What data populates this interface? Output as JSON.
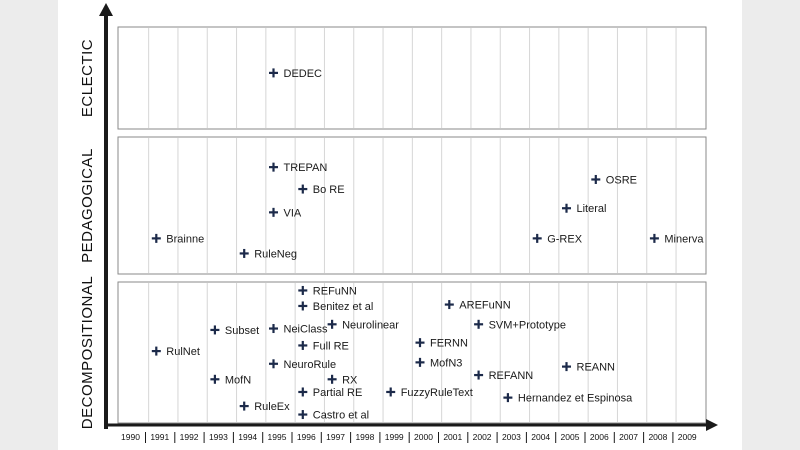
{
  "colors": {
    "marker": "#1c2a4a",
    "axis": "#1a1a1a",
    "gridline": "#d6d6d6",
    "panel_border": "#8a8a8a",
    "side_shade": "#ececec"
  },
  "chart_data": {
    "type": "scatter",
    "x_axis": {
      "ticks": [
        "1990",
        "1991",
        "1992",
        "1993",
        "1994",
        "1995",
        "1996",
        "1997",
        "1998",
        "1999",
        "2000",
        "2001",
        "2002",
        "2003",
        "2004",
        "2005",
        "2006",
        "2007",
        "2008",
        "2009"
      ],
      "range": [
        1990,
        2009
      ]
    },
    "categories": [
      "DECOMPOSITIONAL",
      "PEDAGOGICAL",
      "ECLECTIC"
    ],
    "grid": true,
    "series": [
      {
        "category": "ECLECTIC",
        "points": [
          {
            "label": "DEDEC",
            "x": 1995,
            "y": 0.55
          }
        ]
      },
      {
        "category": "PEDAGOGICAL",
        "points": [
          {
            "label": "TREPAN",
            "x": 1995,
            "y": 0.78
          },
          {
            "label": "Bo RE",
            "x": 1996,
            "y": 0.62
          },
          {
            "label": "VIA",
            "x": 1995,
            "y": 0.45
          },
          {
            "label": "Brainne",
            "x": 1991,
            "y": 0.26
          },
          {
            "label": "RuleNeg",
            "x": 1994,
            "y": 0.15
          },
          {
            "label": "OSRE",
            "x": 2006,
            "y": 0.69
          },
          {
            "label": "Literal",
            "x": 2005,
            "y": 0.48
          },
          {
            "label": "G-REX",
            "x": 2004,
            "y": 0.26
          },
          {
            "label": "Minerva",
            "x": 2008,
            "y": 0.26
          }
        ]
      },
      {
        "category": "DECOMPOSITIONAL",
        "points": [
          {
            "label": "REFuNN",
            "x": 1996,
            "y": 0.94
          },
          {
            "label": "Benitez et al",
            "x": 1996,
            "y": 0.83
          },
          {
            "label": "AREFuNN",
            "x": 2001,
            "y": 0.84
          },
          {
            "label": "Subset",
            "x": 1993,
            "y": 0.66
          },
          {
            "label": "NeiClass",
            "x": 1995,
            "y": 0.67
          },
          {
            "label": "Neurolinear",
            "x": 1997,
            "y": 0.7
          },
          {
            "label": "SVM+Prototype",
            "x": 2002,
            "y": 0.7
          },
          {
            "label": "FERNN",
            "x": 2000,
            "y": 0.57
          },
          {
            "label": "RulNet",
            "x": 1991,
            "y": 0.51
          },
          {
            "label": "Full RE",
            "x": 1996,
            "y": 0.55
          },
          {
            "label": "NeuroRule",
            "x": 1995,
            "y": 0.42
          },
          {
            "label": "MofN3",
            "x": 2000,
            "y": 0.43
          },
          {
            "label": "REANN",
            "x": 2005,
            "y": 0.4
          },
          {
            "label": "REFANN",
            "x": 2002,
            "y": 0.34
          },
          {
            "label": "MofN",
            "x": 1993,
            "y": 0.31
          },
          {
            "label": "RX",
            "x": 1997,
            "y": 0.31
          },
          {
            "label": "Partial RE",
            "x": 1996,
            "y": 0.22
          },
          {
            "label": "FuzzyRuleText",
            "x": 1999,
            "y": 0.22
          },
          {
            "label": "Hernandez et Espinosa",
            "x": 2003,
            "y": 0.18
          },
          {
            "label": "RuleEx",
            "x": 1994,
            "y": 0.12
          },
          {
            "label": "Castro et al",
            "x": 1996,
            "y": 0.06
          }
        ]
      }
    ]
  }
}
